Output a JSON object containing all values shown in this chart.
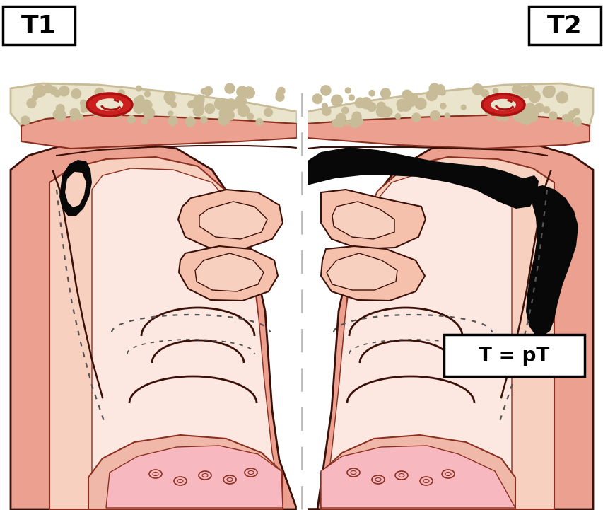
{
  "title_left": "T1",
  "title_right": "T2",
  "label_box": "T = pT",
  "bg_color": "#ffffff",
  "skin_outer": "#e8907a",
  "skin_mid": "#eca090",
  "skin_inner": "#f5c0ac",
  "skin_light": "#f8d0c0",
  "skin_highlight": "#fce8e0",
  "skin_tongue": "#f0b8a8",
  "skin_pink": "#f8b8c0",
  "outline_main": "#8b3020",
  "outline_dark": "#3a1008",
  "bone_fill": "#eae4cc",
  "bone_dots": "#c8bc98",
  "tumor_black": "#080808",
  "red_oval_fill": "#cc2020",
  "red_oval_stroke": "#aa1010",
  "divider_white": "#ffffff",
  "divider_dash": "#c0c0c0",
  "label_fontsize": 26,
  "tpt_fontsize": 20
}
